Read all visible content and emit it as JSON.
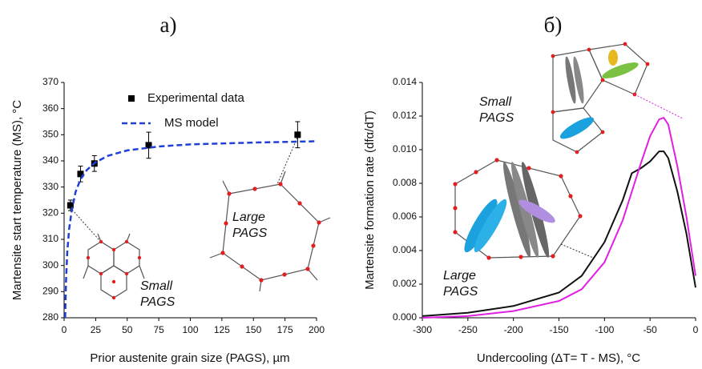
{
  "chart_data": [
    {
      "type": "scatter",
      "panel_label": "а)",
      "x_label": "Prior austenite grain size (PAGS), µm",
      "y_label": "Martensite start temperature (MS), °C",
      "xlim": [
        0,
        200
      ],
      "xticks": [
        0,
        25,
        50,
        75,
        100,
        125,
        150,
        175,
        200
      ],
      "ylim": [
        280,
        370
      ],
      "yticks": [
        280,
        290,
        300,
        310,
        320,
        330,
        340,
        350,
        360,
        370
      ],
      "series": [
        {
          "name": "Experimental data",
          "color": "#000000",
          "x": [
            5,
            13,
            24,
            67,
            185
          ],
          "values": [
            323,
            335,
            339,
            346,
            350
          ],
          "errors": [
            2,
            3,
            3,
            5,
            5
          ]
        },
        {
          "name": "MS model",
          "color": "#1f3fd6",
          "dashed": true,
          "x": [
            0.8,
            1.5,
            2.5,
            4,
            6,
            9,
            13,
            18,
            25,
            35,
            50,
            75,
            100,
            150,
            200
          ],
          "values": [
            280,
            294,
            305,
            314,
            321,
            328,
            333,
            336.5,
            339.5,
            342,
            344,
            345.5,
            346.3,
            347,
            347.5
          ]
        }
      ],
      "annotations": [
        [
          "Small",
          "PAGS"
        ],
        [
          "Large",
          "PAGS"
        ]
      ]
    },
    {
      "type": "line",
      "panel_label": "б)",
      "x_label": "Undercooling (ΔT= T - MS), °C",
      "y_label": "Martensite formation rate (dfα/dT)",
      "xlim": [
        -300,
        0
      ],
      "xticks": [
        -300,
        -250,
        -200,
        -150,
        -100,
        -50,
        0
      ],
      "ylim": [
        0,
        0.014
      ],
      "yticks": [
        {
          "value": 0,
          "label": "0.000"
        },
        {
          "value": 0.002,
          "label": "0.002"
        },
        {
          "value": 0.004,
          "label": "0.004"
        },
        {
          "value": 0.006,
          "label": "0.006"
        },
        {
          "value": 0.008,
          "label": "0.008"
        },
        {
          "value": 0.01,
          "label": "0.010"
        },
        {
          "value": 0.012,
          "label": "0.012"
        },
        {
          "value": 0.014,
          "label": "0.014"
        }
      ],
      "x": [
        -300,
        -250,
        -200,
        -150,
        -125,
        -100,
        -80,
        -70,
        -60,
        -50,
        -40,
        -35,
        -30,
        -20,
        -10,
        0
      ],
      "series": [
        {
          "color": "#111111",
          "values": [
            0.0001,
            0.0003,
            0.0007,
            0.0015,
            0.0025,
            0.0045,
            0.007,
            0.0086,
            0.0089,
            0.0093,
            0.0099,
            0.0099,
            0.0095,
            0.0075,
            0.005,
            0.0018
          ]
        },
        {
          "color": "#e020e0",
          "values": [
            0,
            0.0001,
            0.0004,
            0.001,
            0.0017,
            0.0033,
            0.0058,
            0.0075,
            0.0092,
            0.0108,
            0.0118,
            0.0119,
            0.0115,
            0.009,
            0.006,
            0.0025
          ]
        }
      ],
      "annotations": [
        [
          "Small",
          "PAGS"
        ],
        [
          "Large",
          "PAGS"
        ]
      ]
    }
  ]
}
